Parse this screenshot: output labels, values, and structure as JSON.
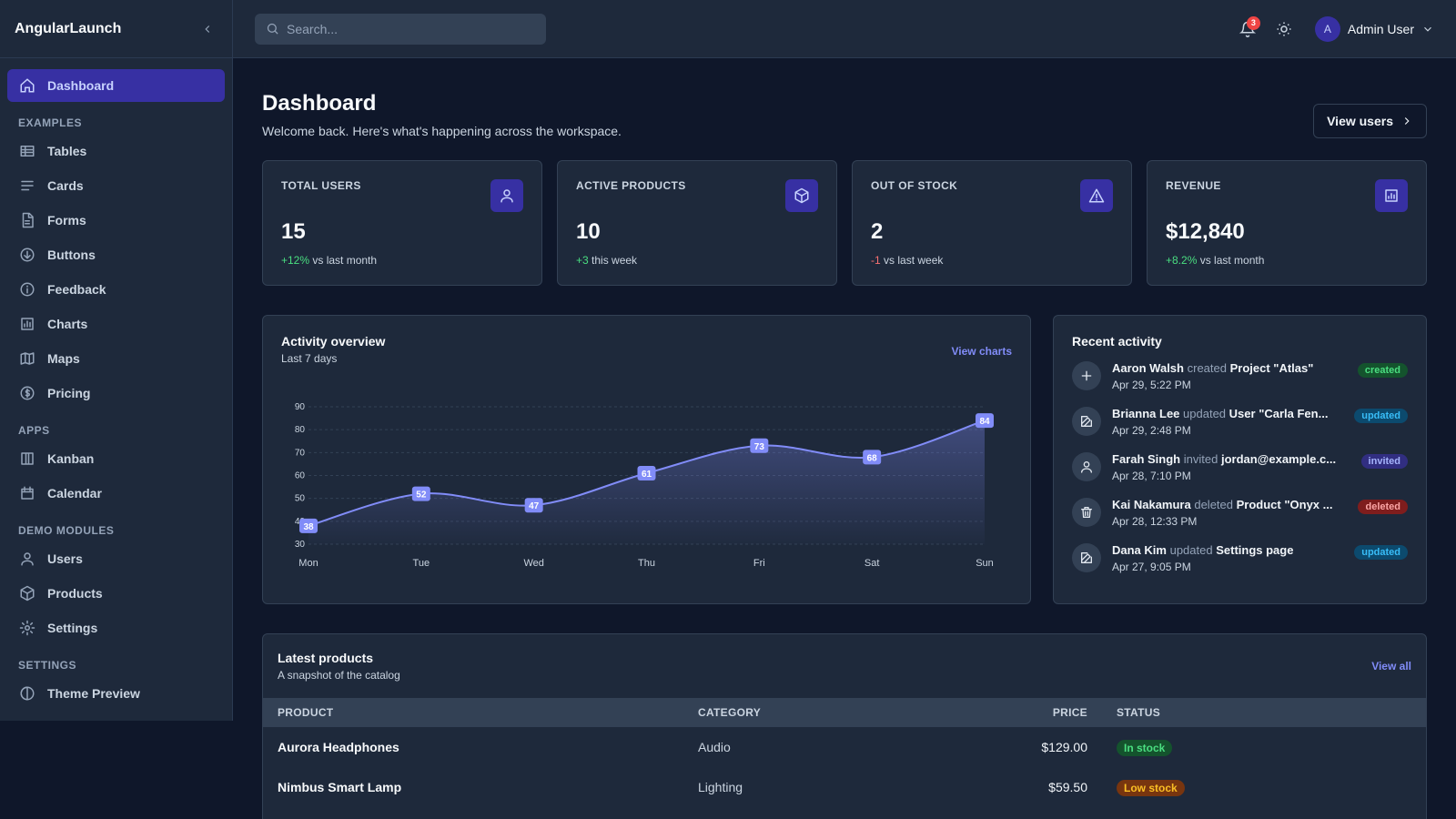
{
  "app": {
    "brand": "AngularLaunch"
  },
  "sidebar": {
    "dashboard": "Dashboard",
    "sections": [
      {
        "title": "EXAMPLES",
        "items": [
          {
            "label": "Tables",
            "icon": "table-icon"
          },
          {
            "label": "Cards",
            "icon": "cards-icon"
          },
          {
            "label": "Forms",
            "icon": "document-icon"
          },
          {
            "label": "Buttons",
            "icon": "arrow-circle-icon"
          },
          {
            "label": "Feedback",
            "icon": "info-icon"
          },
          {
            "label": "Charts",
            "icon": "bar-chart-icon"
          },
          {
            "label": "Maps",
            "icon": "map-icon"
          },
          {
            "label": "Pricing",
            "icon": "dollar-icon"
          }
        ]
      },
      {
        "title": "APPS",
        "items": [
          {
            "label": "Kanban",
            "icon": "kanban-icon"
          },
          {
            "label": "Calendar",
            "icon": "calendar-icon"
          }
        ]
      },
      {
        "title": "DEMO MODULES",
        "items": [
          {
            "label": "Users",
            "icon": "user-icon"
          },
          {
            "label": "Products",
            "icon": "box-icon"
          },
          {
            "label": "Settings",
            "icon": "gear-icon"
          }
        ]
      },
      {
        "title": "SETTINGS",
        "items": [
          {
            "label": "Theme Preview",
            "icon": "theme-icon"
          }
        ]
      }
    ]
  },
  "topbar": {
    "search_placeholder": "Search...",
    "notification_count": "3",
    "user_initial": "A",
    "user_name": "Admin User"
  },
  "page": {
    "title": "Dashboard",
    "subtitle": "Welcome back. Here's what's happening across the workspace.",
    "view_users": "View users"
  },
  "stats": [
    {
      "label": "TOTAL USERS",
      "value": "15",
      "delta": "+12%",
      "delta_type": "pos",
      "note": "vs last month",
      "icon": "user-icon"
    },
    {
      "label": "ACTIVE PRODUCTS",
      "value": "10",
      "delta": "+3",
      "delta_type": "pos",
      "note": "this week",
      "icon": "box-icon"
    },
    {
      "label": "OUT OF STOCK",
      "value": "2",
      "delta": "-1",
      "delta_type": "neg",
      "note": "vs last week",
      "icon": "warning-icon"
    },
    {
      "label": "REVENUE",
      "value": "$12,840",
      "delta": "+8.2%",
      "delta_type": "pos",
      "note": "vs last month",
      "icon": "report-icon"
    }
  ],
  "activity_chart": {
    "title": "Activity overview",
    "subtitle": "Last 7 days",
    "link": "View charts"
  },
  "chart_data": {
    "type": "area",
    "title": "Activity overview",
    "subtitle": "Last 7 days",
    "categories": [
      "Mon",
      "Tue",
      "Wed",
      "Thu",
      "Fri",
      "Sat",
      "Sun"
    ],
    "values": [
      38,
      52,
      47,
      61,
      73,
      68,
      84
    ],
    "yticks": [
      30,
      40,
      50,
      60,
      70,
      80,
      90
    ],
    "ylim": [
      30,
      90
    ],
    "grid": true,
    "color": "#818cf8"
  },
  "recent_activity": {
    "title": "Recent activity",
    "items": [
      {
        "actor": "Aaron Walsh",
        "verb": "created",
        "target": "Project \"Atlas\"",
        "time": "Apr 29, 5:22 PM",
        "tag": "created",
        "icon": "plus-icon"
      },
      {
        "actor": "Brianna Lee",
        "verb": "updated",
        "target": "User \"Carla Fen...",
        "time": "Apr 29, 2:48 PM",
        "tag": "updated",
        "icon": "edit-icon"
      },
      {
        "actor": "Farah Singh",
        "verb": "invited",
        "target": "jordan@example.c...",
        "time": "Apr 28, 7:10 PM",
        "tag": "invited",
        "icon": "user-icon"
      },
      {
        "actor": "Kai Nakamura",
        "verb": "deleted",
        "target": "Product \"Onyx ...",
        "time": "Apr 28, 12:33 PM",
        "tag": "deleted",
        "icon": "trash-icon"
      },
      {
        "actor": "Dana Kim",
        "verb": "updated",
        "target": "Settings page",
        "time": "Apr 27, 9:05 PM",
        "tag": "updated",
        "icon": "edit-icon"
      }
    ]
  },
  "products": {
    "title": "Latest products",
    "subtitle": "A snapshot of the catalog",
    "link": "View all",
    "columns": [
      "PRODUCT",
      "CATEGORY",
      "PRICE",
      "STATUS"
    ],
    "rows": [
      {
        "name": "Aurora Headphones",
        "category": "Audio",
        "price": "$129.00",
        "status": "In stock",
        "status_type": "green"
      },
      {
        "name": "Nimbus Smart Lamp",
        "category": "Lighting",
        "price": "$59.50",
        "status": "Low stock",
        "status_type": "amber"
      }
    ]
  }
}
